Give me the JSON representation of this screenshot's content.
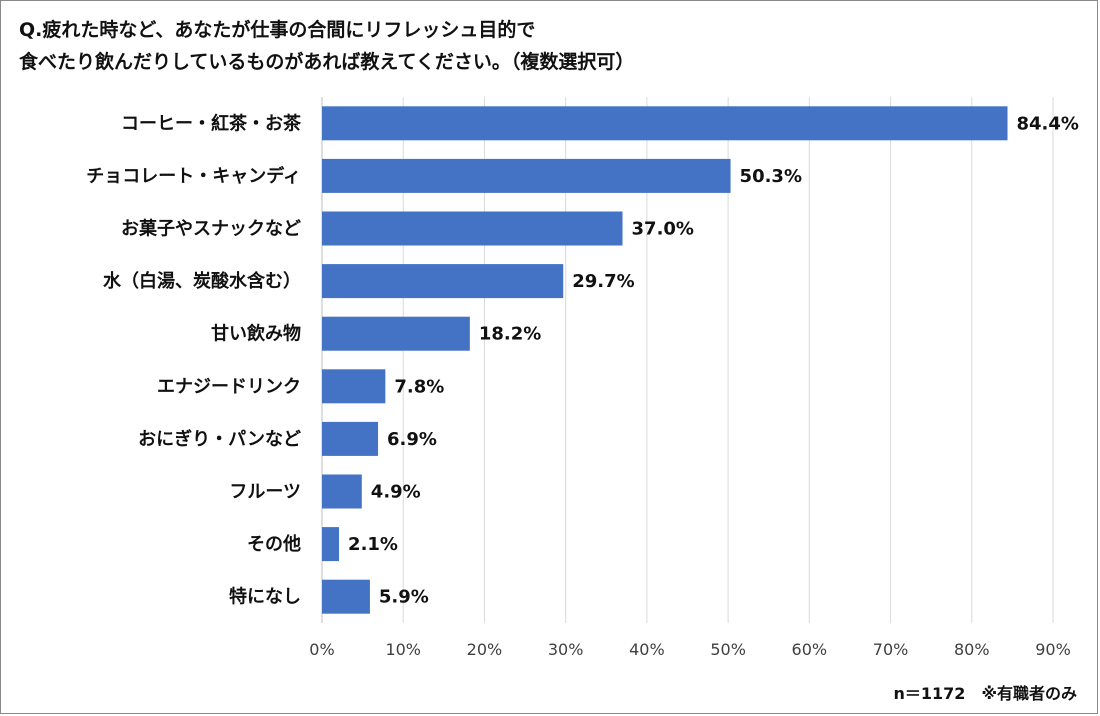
{
  "title_lines": [
    "Q.疲れた時など、あなたが仕事の合間にリフレッシュ目的で",
    "食べたり飲んだりしているものがあれば教えてください。（複数選択可）"
  ],
  "footnote": "n＝1172　※有職者のみ",
  "colors": {
    "bar": "#4472C4",
    "grid": "#D9D9D9",
    "text": "#111111"
  },
  "chart_data": {
    "type": "bar",
    "orientation": "horizontal",
    "categories": [
      "コーヒー・紅茶・お茶",
      "チョコレート・キャンディ",
      "お菓子やスナックなど",
      "水（白湯、炭酸水含む）",
      "甘い飲み物",
      "エナジードリンク",
      "おにぎり・パンなど",
      "フルーツ",
      "その他",
      "特になし"
    ],
    "values": [
      84.4,
      50.3,
      37.0,
      29.7,
      18.2,
      7.8,
      6.9,
      4.9,
      2.1,
      5.9
    ],
    "value_labels": [
      "84.4%",
      "50.3%",
      "37.0%",
      "29.7%",
      "18.2%",
      "7.8%",
      "6.9%",
      "4.9%",
      "2.1%",
      "5.9%"
    ],
    "xlim": [
      0,
      90
    ],
    "ticks": [
      0,
      10,
      20,
      30,
      40,
      50,
      60,
      70,
      80,
      90
    ],
    "tick_labels": [
      "0%",
      "10%",
      "20%",
      "30%",
      "40%",
      "50%",
      "60%",
      "70%",
      "80%",
      "90%"
    ],
    "grid": true,
    "legend": "none"
  }
}
